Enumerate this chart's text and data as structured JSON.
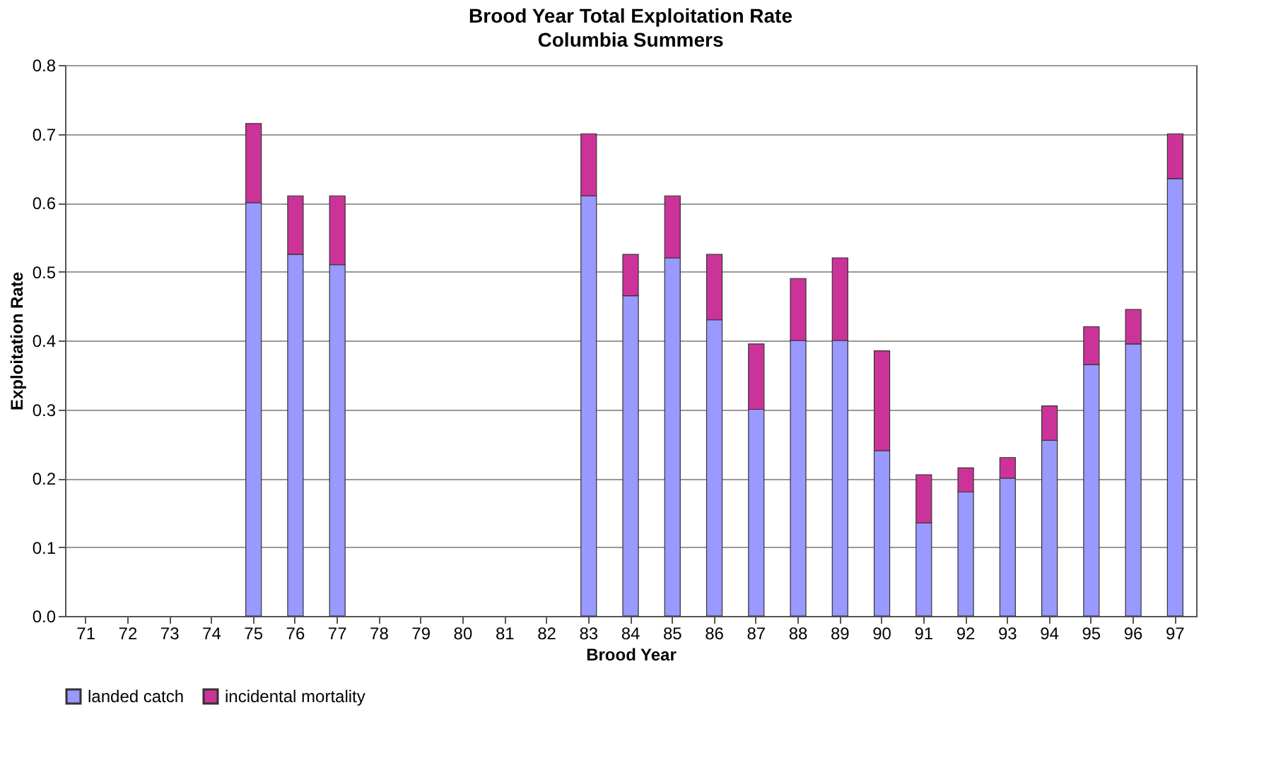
{
  "chart_data": {
    "type": "bar",
    "title": "Brood Year Total Exploitation Rate",
    "subtitle": "Columbia Summers",
    "xlabel": "Brood Year",
    "ylabel": "Exploitation Rate",
    "categories": [
      "71",
      "72",
      "73",
      "74",
      "75",
      "76",
      "77",
      "78",
      "79",
      "80",
      "81",
      "82",
      "83",
      "84",
      "85",
      "86",
      "87",
      "88",
      "89",
      "90",
      "91",
      "92",
      "93",
      "94",
      "95",
      "96",
      "97"
    ],
    "stacked": true,
    "series": [
      {
        "name": "landed catch",
        "color": "#9999ff",
        "values": [
          null,
          null,
          null,
          null,
          0.6,
          0.525,
          0.51,
          null,
          null,
          null,
          null,
          null,
          0.61,
          0.465,
          0.52,
          0.43,
          0.3,
          0.4,
          0.4,
          0.24,
          0.135,
          0.18,
          0.2,
          0.255,
          0.365,
          0.395,
          0.635
        ]
      },
      {
        "name": "incidental mortality",
        "color": "#cc3399",
        "values": [
          null,
          null,
          null,
          null,
          0.115,
          0.085,
          0.1,
          null,
          null,
          null,
          null,
          null,
          0.09,
          0.06,
          0.09,
          0.095,
          0.095,
          0.09,
          0.12,
          0.145,
          0.07,
          0.035,
          0.03,
          0.05,
          0.055,
          0.05,
          0.065
        ]
      }
    ],
    "ylim": [
      0,
      0.8
    ],
    "yticks": [
      {
        "value": 0,
        "label": "0.0"
      },
      0.1,
      0.2,
      0.3,
      0.4,
      0.5,
      0.6,
      0.7,
      0.8
    ],
    "grid": "y",
    "legend": "bottom"
  }
}
